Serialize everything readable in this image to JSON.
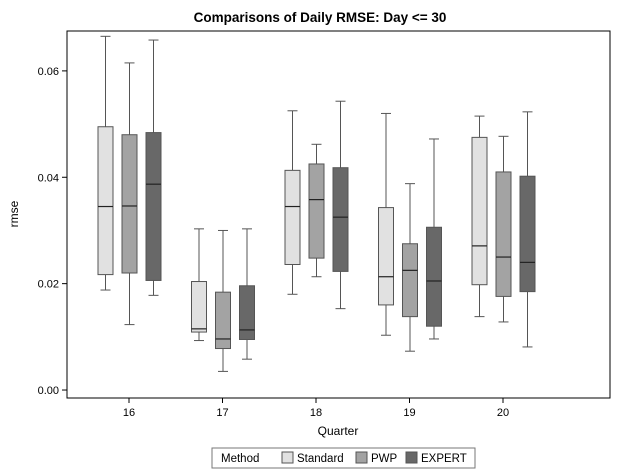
{
  "chart_data": {
    "type": "boxplot",
    "title": "Comparisons of Daily RMSE: Day <= 30",
    "xlabel": "Quarter",
    "ylabel": "rmse",
    "categories": [
      "16",
      "17",
      "18",
      "19",
      "20"
    ],
    "ylim": [
      -0.0015,
      0.0675
    ],
    "yticks": [
      "0.00",
      "0.02",
      "0.04",
      "0.06"
    ],
    "ytick_values": [
      0.0,
      0.02,
      0.04,
      0.06
    ],
    "grid": false,
    "legend": {
      "title": "Method",
      "placement": "bottom",
      "entries": [
        "Standard",
        "PWP",
        "EXPERT"
      ]
    },
    "colors": {
      "Standard": "#e1e1e1",
      "PWP": "#a3a3a3",
      "EXPERT": "#686868",
      "outline": "#555555"
    },
    "series": [
      {
        "name": "Standard",
        "boxes": [
          {
            "min": 0.0188,
            "q1": 0.0217,
            "median": 0.0345,
            "q3": 0.0495,
            "max": 0.0665
          },
          {
            "min": 0.0093,
            "q1": 0.0109,
            "median": 0.0115,
            "q3": 0.0204,
            "max": 0.0303
          },
          {
            "min": 0.018,
            "q1": 0.0236,
            "median": 0.0345,
            "q3": 0.0413,
            "max": 0.0525
          },
          {
            "min": 0.0103,
            "q1": 0.016,
            "median": 0.0213,
            "q3": 0.0343,
            "max": 0.052
          },
          {
            "min": 0.0138,
            "q1": 0.0198,
            "median": 0.0271,
            "q3": 0.0475,
            "max": 0.0515
          }
        ]
      },
      {
        "name": "PWP",
        "boxes": [
          {
            "min": 0.0123,
            "q1": 0.022,
            "median": 0.0346,
            "q3": 0.048,
            "max": 0.0615
          },
          {
            "min": 0.0035,
            "q1": 0.0078,
            "median": 0.0096,
            "q3": 0.0184,
            "max": 0.03
          },
          {
            "min": 0.0213,
            "q1": 0.0248,
            "median": 0.0358,
            "q3": 0.0425,
            "max": 0.0462
          },
          {
            "min": 0.0073,
            "q1": 0.0138,
            "median": 0.0225,
            "q3": 0.0275,
            "max": 0.0388
          },
          {
            "min": 0.0128,
            "q1": 0.0176,
            "median": 0.025,
            "q3": 0.041,
            "max": 0.0477
          }
        ]
      },
      {
        "name": "EXPERT",
        "boxes": [
          {
            "min": 0.0178,
            "q1": 0.0206,
            "median": 0.0387,
            "q3": 0.0484,
            "max": 0.0658
          },
          {
            "min": 0.0058,
            "q1": 0.0095,
            "median": 0.0113,
            "q3": 0.0196,
            "max": 0.0303
          },
          {
            "min": 0.0153,
            "q1": 0.0223,
            "median": 0.0325,
            "q3": 0.0418,
            "max": 0.0543
          },
          {
            "min": 0.0096,
            "q1": 0.012,
            "median": 0.0205,
            "q3": 0.0306,
            "max": 0.0472
          },
          {
            "min": 0.0081,
            "q1": 0.0185,
            "median": 0.024,
            "q3": 0.0402,
            "max": 0.0523
          }
        ]
      }
    ]
  }
}
